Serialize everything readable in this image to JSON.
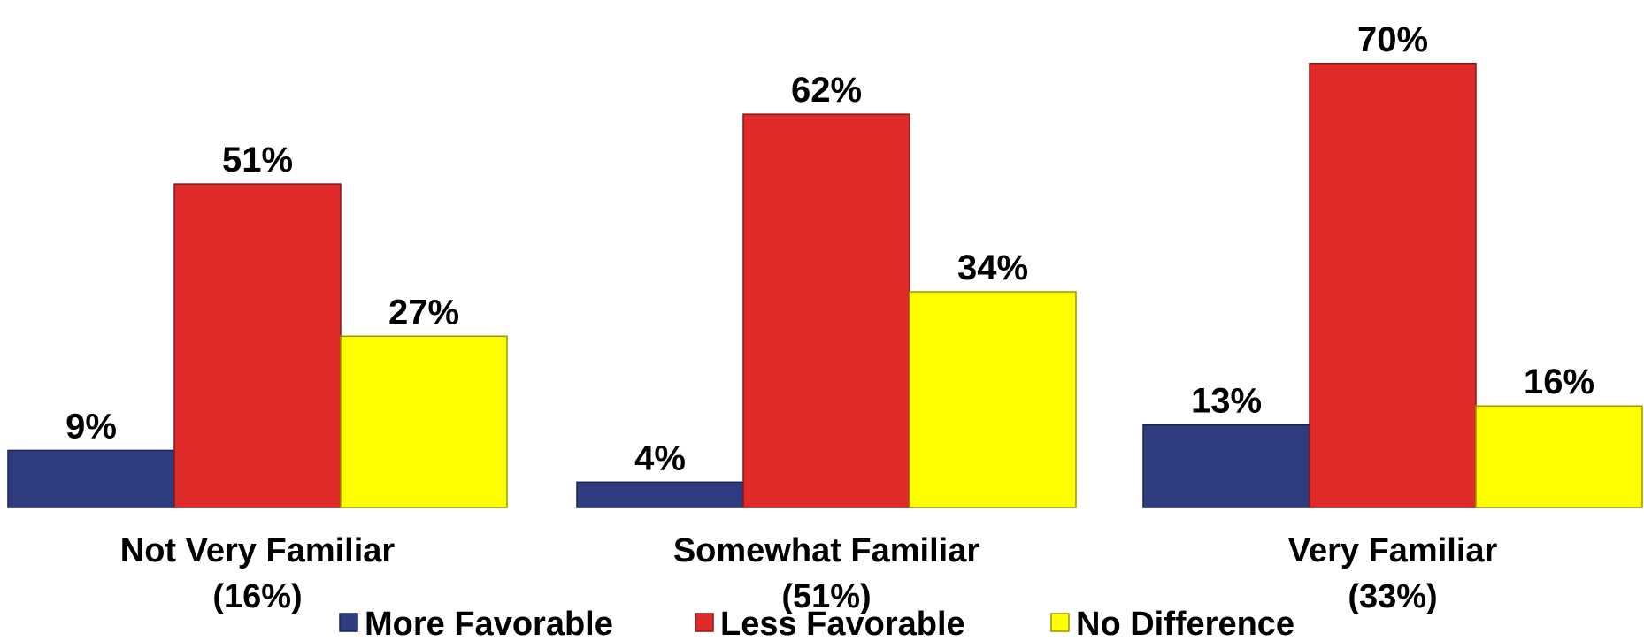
{
  "chart_data": {
    "type": "bar",
    "categories": [
      "Not Very Familiar\n(16%)",
      "Somewhat Familiar\n(51%)",
      "Very Familiar\n(33%)"
    ],
    "series": [
      {
        "name": "More Favorable",
        "color": "#2f3d80",
        "values": [
          9,
          4,
          13
        ],
        "value_labels": [
          "9%",
          "4%",
          "13%"
        ]
      },
      {
        "name": "Less Favorable",
        "color": "#e02a2a",
        "values": [
          51,
          62,
          70
        ],
        "value_labels": [
          "51%",
          "62%",
          "70%"
        ]
      },
      {
        "name": "No Difference",
        "color": "#ffff00",
        "values": [
          27,
          34,
          16
        ],
        "value_labels": [
          "27%",
          "34%",
          "16%"
        ]
      }
    ],
    "ylim": [
      0,
      80
    ],
    "legend": "bottom"
  }
}
